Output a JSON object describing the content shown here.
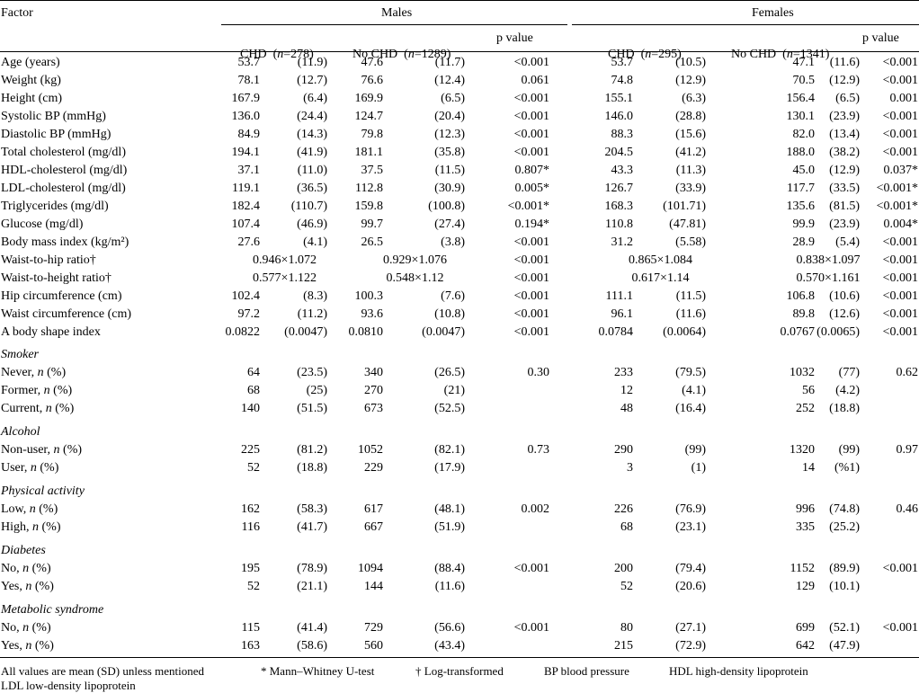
{
  "header": {
    "factor": "Factor",
    "males": "Males",
    "females": "Females",
    "chd": "CHD",
    "no_chd": "No CHD",
    "n": "n",
    "males_chd_n": "=278",
    "males_nochd_n": "=1289",
    "females_chd_n": "=295",
    "females_nochd_n": "=1341",
    "p_value": "p value"
  },
  "rows": [
    {
      "label": "Age (years)",
      "m_chd": [
        "53.7",
        "(11.9)"
      ],
      "m_no": [
        "47.6",
        "(11.7)"
      ],
      "m_p": "<0.001",
      "f_chd": [
        "53.7",
        "(10.5)"
      ],
      "f_no": [
        "47.1",
        "(11.6)"
      ],
      "f_p": "<0.001"
    },
    {
      "label": "Weight (kg)",
      "m_chd": [
        "78.1",
        "(12.7)"
      ],
      "m_no": [
        "76.6",
        "(12.4)"
      ],
      "m_p": "0.061",
      "f_chd": [
        "74.8",
        "(12.9)"
      ],
      "f_no": [
        "70.5",
        "(12.9)"
      ],
      "f_p": "<0.001"
    },
    {
      "label": "Height (cm)",
      "m_chd": [
        "167.9",
        "(6.4)"
      ],
      "m_no": [
        "169.9",
        "(6.5)"
      ],
      "m_p": "<0.001",
      "f_chd": [
        "155.1",
        "(6.3)"
      ],
      "f_no": [
        "156.4",
        "(6.5)"
      ],
      "f_p": "0.001"
    },
    {
      "label": "Systolic BP (mmHg)",
      "m_chd": [
        "136.0",
        "(24.4)"
      ],
      "m_no": [
        "124.7",
        "(20.4)"
      ],
      "m_p": "<0.001",
      "f_chd": [
        "146.0",
        "(28.8)"
      ],
      "f_no": [
        "130.1",
        "(23.9)"
      ],
      "f_p": "<0.001"
    },
    {
      "label": "Diastolic BP (mmHg)",
      "m_chd": [
        "84.9",
        "(14.3)"
      ],
      "m_no": [
        "79.8",
        "(12.3)"
      ],
      "m_p": "<0.001",
      "f_chd": [
        "88.3",
        "(15.6)"
      ],
      "f_no": [
        "82.0",
        "(13.4)"
      ],
      "f_p": "<0.001"
    },
    {
      "label": "Total cholesterol (mg/dl)",
      "m_chd": [
        "194.1",
        "(41.9)"
      ],
      "m_no": [
        "181.1",
        "(35.8)"
      ],
      "m_p": "<0.001",
      "f_chd": [
        "204.5",
        "(41.2)"
      ],
      "f_no": [
        "188.0",
        "(38.2)"
      ],
      "f_p": "<0.001"
    },
    {
      "label": "HDL-cholesterol (mg/dl)",
      "m_chd": [
        "37.1",
        "(11.0)"
      ],
      "m_no": [
        "37.5",
        "(11.5)"
      ],
      "m_p": "0.807*",
      "f_chd": [
        "43.3",
        "(11.3)"
      ],
      "f_no": [
        "45.0",
        "(12.9)"
      ],
      "f_p": "0.037*"
    },
    {
      "label": "LDL-cholesterol (mg/dl)",
      "m_chd": [
        "119.1",
        "(36.5)"
      ],
      "m_no": [
        "112.8",
        "(30.9)"
      ],
      "m_p": "0.005*",
      "f_chd": [
        "126.7",
        "(33.9)"
      ],
      "f_no": [
        "117.7",
        "(33.5)"
      ],
      "f_p": "<0.001*"
    },
    {
      "label": "Triglycerides (mg/dl)",
      "m_chd": [
        "182.4",
        "(110.7)"
      ],
      "m_no": [
        "159.8",
        "(100.8)"
      ],
      "m_p": "<0.001*",
      "f_chd": [
        "168.3",
        "(101.71)"
      ],
      "f_no": [
        "135.6",
        "(81.5)"
      ],
      "f_p": "<0.001*"
    },
    {
      "label": "Glucose (mg/dl)",
      "m_chd": [
        "107.4",
        "(46.9)"
      ],
      "m_no": [
        "99.7",
        "(27.4)"
      ],
      "m_p": "0.194*",
      "f_chd": [
        "110.8",
        "(47.81)"
      ],
      "f_no": [
        "99.9",
        "(23.9)"
      ],
      "f_p": "0.004*"
    },
    {
      "label": "Body mass index (kg/m²)",
      "m_chd": [
        "27.6",
        "(4.1)"
      ],
      "m_no": [
        "26.5",
        "(3.8)"
      ],
      "m_p": "<0.001",
      "f_chd": [
        "31.2",
        "(5.58)"
      ],
      "f_no": [
        "28.9",
        "(5.4)"
      ],
      "f_p": "<0.001"
    },
    {
      "label": "Waist-to-hip ratio†",
      "m_chd": [
        "0.946×1.072",
        ""
      ],
      "m_no": [
        "0.929×1.076",
        ""
      ],
      "m_p": "<0.001",
      "f_chd": [
        "0.865×1.084",
        ""
      ],
      "f_no": [
        "0.838×1.097",
        ""
      ],
      "f_p": "<0.001"
    },
    {
      "label": "Waist-to-height ratio†",
      "m_chd": [
        "0.577×1.122",
        ""
      ],
      "m_no": [
        "0.548×1.12",
        ""
      ],
      "m_p": "<0.001",
      "f_chd": [
        "0.617×1.14",
        ""
      ],
      "f_no": [
        "0.570×1.161",
        ""
      ],
      "f_p": "<0.001"
    },
    {
      "label": "Hip circumference (cm)",
      "m_chd": [
        "102.4",
        "(8.3)"
      ],
      "m_no": [
        "100.3",
        "(7.6)"
      ],
      "m_p": "<0.001",
      "f_chd": [
        "111.1",
        "(11.5)"
      ],
      "f_no": [
        "106.8",
        "(10.6)"
      ],
      "f_p": "<0.001"
    },
    {
      "label": "Waist circumference (cm)",
      "m_chd": [
        "97.2",
        "(11.2)"
      ],
      "m_no": [
        "93.6",
        "(10.8)"
      ],
      "m_p": "<0.001",
      "f_chd": [
        "96.1",
        "(11.6)"
      ],
      "f_no": [
        "89.8",
        "(12.6)"
      ],
      "f_p": "<0.001"
    },
    {
      "label": "A body shape index",
      "m_chd": [
        "0.0822",
        "(0.0047)"
      ],
      "m_no": [
        "0.0810",
        "(0.0047)"
      ],
      "m_p": "<0.001",
      "f_chd": [
        "0.0784",
        "(0.0064)"
      ],
      "f_no": [
        "0.0767",
        "(0.0065)"
      ],
      "f_p": "<0.001"
    }
  ],
  "sections": [
    {
      "title": "Smoker",
      "rows": [
        {
          "label": "Never, ",
          "ital": "n",
          "suffix": " (%)",
          "m_chd": [
            "64",
            "(23.5)"
          ],
          "m_no": [
            "340",
            "(26.5)"
          ],
          "m_p": "0.30",
          "f_chd": [
            "233",
            "(79.5)"
          ],
          "f_no": [
            "1032",
            "(77)"
          ],
          "f_p": "0.62"
        },
        {
          "label": "Former, ",
          "ital": "n",
          "suffix": " (%)",
          "m_chd": [
            "68",
            "(25)"
          ],
          "m_no": [
            "270",
            "(21)"
          ],
          "m_p": "",
          "f_chd": [
            "12",
            "(4.1)"
          ],
          "f_no": [
            "56",
            "(4.2)"
          ],
          "f_p": ""
        },
        {
          "label": "Current, ",
          "ital": "n",
          "suffix": " (%)",
          "m_chd": [
            "140",
            "(51.5)"
          ],
          "m_no": [
            "673",
            "(52.5)"
          ],
          "m_p": "",
          "f_chd": [
            "48",
            "(16.4)"
          ],
          "f_no": [
            "252",
            "(18.8)"
          ],
          "f_p": ""
        }
      ]
    },
    {
      "title": "Alcohol",
      "rows": [
        {
          "label": "Non-user, ",
          "ital": "n",
          "suffix": " (%)",
          "m_chd": [
            "225",
            "(81.2)"
          ],
          "m_no": [
            "1052",
            "(82.1)"
          ],
          "m_p": "0.73",
          "f_chd": [
            "290",
            "(99)"
          ],
          "f_no": [
            "1320",
            "(99)"
          ],
          "f_p": "0.97"
        },
        {
          "label": "User, ",
          "ital": "n",
          "suffix": " (%)",
          "m_chd": [
            "52",
            "(18.8)"
          ],
          "m_no": [
            "229",
            "(17.9)"
          ],
          "m_p": "",
          "f_chd": [
            "3",
            "(1)"
          ],
          "f_no": [
            "14",
            "(%1)"
          ],
          "f_p": ""
        }
      ]
    },
    {
      "title": "Physical activity",
      "rows": [
        {
          "label": "Low, ",
          "ital": "n",
          "suffix": " (%)",
          "m_chd": [
            "162",
            "(58.3)"
          ],
          "m_no": [
            "617",
            "(48.1)"
          ],
          "m_p": "0.002",
          "f_chd": [
            "226",
            "(76.9)"
          ],
          "f_no": [
            "996",
            "(74.8)"
          ],
          "f_p": "0.46"
        },
        {
          "label": "High, ",
          "ital": "n",
          "suffix": " (%)",
          "m_chd": [
            "116",
            "(41.7)"
          ],
          "m_no": [
            "667",
            "(51.9)"
          ],
          "m_p": "",
          "f_chd": [
            "68",
            "(23.1)"
          ],
          "f_no": [
            "335",
            "(25.2)"
          ],
          "f_p": ""
        }
      ]
    },
    {
      "title": "Diabetes",
      "rows": [
        {
          "label": "No, ",
          "ital": "n",
          "suffix": " (%)",
          "m_chd": [
            "195",
            "(78.9)"
          ],
          "m_no": [
            "1094",
            "(88.4)"
          ],
          "m_p": "<0.001",
          "f_chd": [
            "200",
            "(79.4)"
          ],
          "f_no": [
            "1152",
            "(89.9)"
          ],
          "f_p": "<0.001"
        },
        {
          "label": "Yes, ",
          "ital": "n",
          "suffix": " (%)",
          "m_chd": [
            "52",
            "(21.1)"
          ],
          "m_no": [
            "144",
            "(11.6)"
          ],
          "m_p": "",
          "f_chd": [
            "52",
            "(20.6)"
          ],
          "f_no": [
            "129",
            "(10.1)"
          ],
          "f_p": ""
        }
      ]
    },
    {
      "title": "Metabolic syndrome",
      "rows": [
        {
          "label": "No, ",
          "ital": "n",
          "suffix": " (%)",
          "m_chd": [
            "115",
            "(41.4)"
          ],
          "m_no": [
            "729",
            "(56.6)"
          ],
          "m_p": "<0.001",
          "f_chd": [
            "80",
            "(27.1)"
          ],
          "f_no": [
            "699",
            "(52.1)"
          ],
          "f_p": "<0.001"
        },
        {
          "label": "Yes, ",
          "ital": "n",
          "suffix": " (%)",
          "m_chd": [
            "163",
            "(58.6)"
          ],
          "m_no": [
            "560",
            "(43.4)"
          ],
          "m_p": "",
          "f_chd": [
            "215",
            "(72.9)"
          ],
          "f_no": [
            "642",
            "(47.9)"
          ],
          "f_p": ""
        }
      ]
    }
  ],
  "footnotes": {
    "all_values": "All values are mean (SD) unless mentioned",
    "mann": "* Mann–Whitney U-test",
    "log": "† Log-transformed",
    "bp": "BP blood pressure",
    "hdl": "HDL high-density lipoprotein",
    "ldl": "LDL low-density lipoprotein"
  }
}
